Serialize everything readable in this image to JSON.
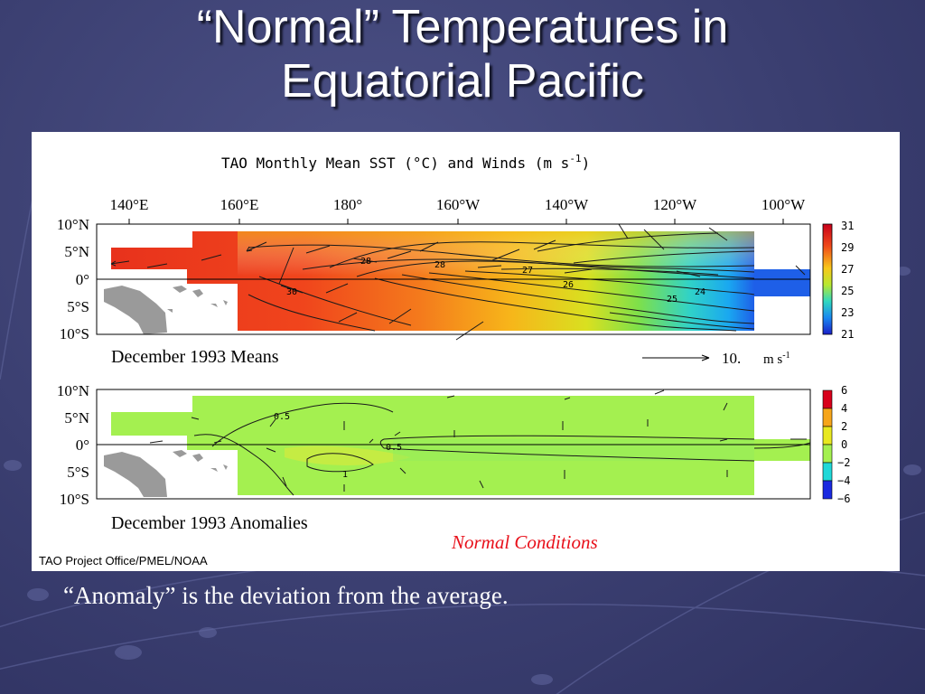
{
  "slide": {
    "title_line1": "“Normal” Temperatures in",
    "title_line2": "Equatorial Pacific",
    "caption": "“Anomaly” is the deviation from the average."
  },
  "figure": {
    "header": "TAO Monthly Mean SST (°C) and Winds (m s",
    "header_sup": "-1",
    "header_end": ")",
    "longitudes": [
      "140°E",
      "160°E",
      "180°",
      "160°W",
      "140°W",
      "120°W",
      "100°W"
    ],
    "latitudes": [
      "10°N",
      "5°N",
      "0°",
      "5°S",
      "10°S"
    ],
    "means_label": "December 1993 Means",
    "anomalies_label": "December 1993 Anomalies",
    "wind_scale_value": "10.",
    "wind_scale_unit": "m s",
    "wind_scale_sup": "-1",
    "colorbar_means": [
      "31",
      "29",
      "27",
      "25",
      "23",
      "21"
    ],
    "colorbar_anomalies": [
      "6",
      "4",
      "2",
      "0",
      "−2",
      "−4",
      "−6"
    ],
    "contour_labels_means": [
      "28",
      "28",
      "27",
      "26",
      "25",
      "24",
      "30"
    ],
    "contour_labels_anomalies": [
      "0.5",
      "0.5",
      "1"
    ],
    "normal_conditions": "Normal Conditions",
    "credit": "TAO Project Office/PMEL/NOAA"
  },
  "colors": {
    "background": "#3b3f71",
    "normal_conditions_text": "#e8101a",
    "land": "#9a9a9a"
  }
}
